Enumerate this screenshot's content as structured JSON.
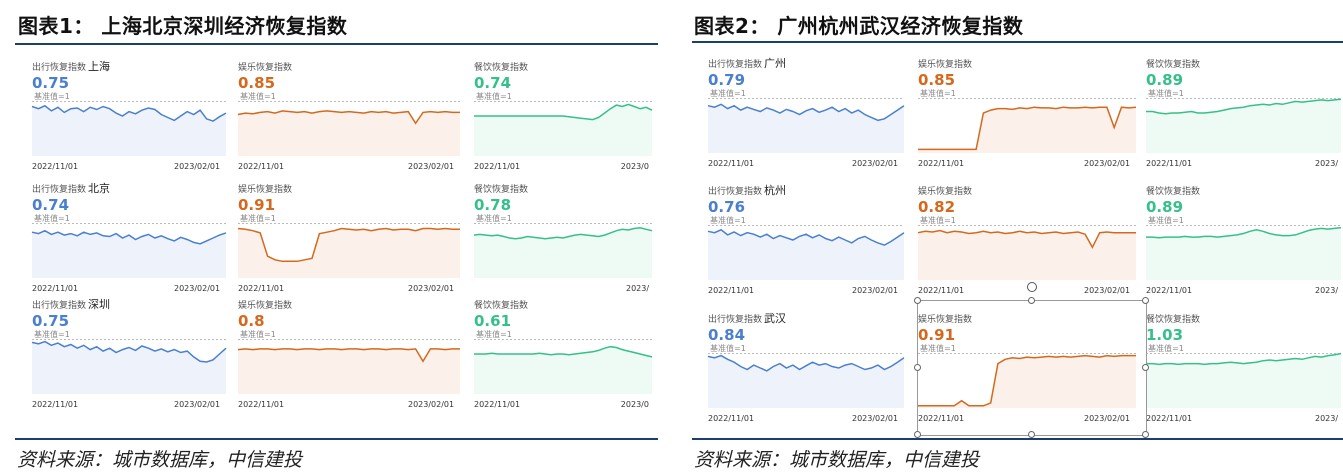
{
  "colors": {
    "blue": "#4a7fd0",
    "orange": "#d4691e",
    "green": "#35c08a",
    "rule": "#1d3f6e"
  },
  "figure1": {
    "title": "图表1：  上海北京深圳经济恢复指数",
    "source": "资料来源：城市数据库，中信建投",
    "base_label": "基准值=1",
    "cities": [
      "上海",
      "北京",
      "深圳"
    ],
    "panels": [
      {
        "label": "出行恢复指数",
        "city": "上海",
        "value": "0.75",
        "color": "blue",
        "date_start": "2022/11/01",
        "date_end": "2023/02/01"
      },
      {
        "label": "娱乐恢复指数",
        "city": "",
        "value": "0.85",
        "color": "orange",
        "date_start": "2022/11/01",
        "date_end": "2023/02/01"
      },
      {
        "label": "餐饮恢复指数",
        "city": "",
        "value": "0.74",
        "color": "green",
        "date_start": "2022/11/01",
        "date_end": "2023/0"
      },
      {
        "label": "出行恢复指数",
        "city": "北京",
        "value": "0.74",
        "color": "blue",
        "date_start": "2022/11/01",
        "date_end": "2023/02/01"
      },
      {
        "label": "娱乐恢复指数",
        "city": "",
        "value": "0.91",
        "color": "orange",
        "date_start": "2022/11/01",
        "date_end": "2023/02/01"
      },
      {
        "label": "餐饮恢复指数",
        "city": "",
        "value": "0.78",
        "color": "green",
        "date_start": "",
        "date_end": "2023/"
      },
      {
        "label": "出行恢复指数",
        "city": "深圳",
        "value": "0.75",
        "color": "blue",
        "date_start": "2022/11/01",
        "date_end": "2023/02/01"
      },
      {
        "label": "娱乐恢复指数",
        "city": "",
        "value": "0.8",
        "color": "orange",
        "date_start": "2022/11/01",
        "date_end": "2023/02/01"
      },
      {
        "label": "餐饮恢复指数",
        "city": "",
        "value": "0.61",
        "color": "green",
        "date_start": "2022/11/01",
        "date_end": "2023/0"
      }
    ]
  },
  "figure2": {
    "title": "图表2：  广州杭州武汉经济恢复指数",
    "source": "资料来源：城市数据库，中信建投",
    "base_label": "基准值=1",
    "cities": [
      "广州",
      "杭州",
      "武汉"
    ],
    "panels": [
      {
        "label": "出行恢复指数",
        "city": "广州",
        "value": "0.79",
        "color": "blue",
        "date_start": "2022/11/01",
        "date_end": "2023/02/01"
      },
      {
        "label": "娱乐恢复指数",
        "city": "",
        "value": "0.85",
        "color": "orange",
        "date_start": "2022/11/01",
        "date_end": "2023/02/01"
      },
      {
        "label": "餐饮恢复指数",
        "city": "",
        "value": "0.89",
        "color": "green",
        "date_start": "2022/11/01",
        "date_end": "2023/"
      },
      {
        "label": "出行恢复指数",
        "city": "杭州",
        "value": "0.76",
        "color": "blue",
        "date_start": "2022/11/01",
        "date_end": "2023/02/01"
      },
      {
        "label": "娱乐恢复指数",
        "city": "",
        "value": "0.82",
        "color": "orange",
        "date_start": "2022/11/01",
        "date_end": "2023/02/01"
      },
      {
        "label": "餐饮恢复指数",
        "city": "",
        "value": "0.89",
        "color": "green",
        "date_start": "2022/11/01",
        "date_end": "2023/"
      },
      {
        "label": "出行恢复指数",
        "city": "武汉",
        "value": "0.84",
        "color": "blue",
        "date_start": "2022/11/01",
        "date_end": "2023/02/01"
      },
      {
        "label": "娱乐恢复指数",
        "city": "",
        "value": "0.91",
        "color": "orange",
        "date_start": "2022/11/01",
        "date_end": "2023/02/01"
      },
      {
        "label": "餐饮恢复指数",
        "city": "",
        "value": "1.03",
        "color": "green",
        "date_start": "2022/11/01",
        "date_end": "2023/"
      }
    ]
  },
  "chart_data": [
    {
      "type": "line",
      "title": "出行恢复指数 上海",
      "xlabel": "",
      "ylabel": "",
      "x_ticks": [
        "2022/11/01",
        "2023/02/01"
      ],
      "baseline": 1,
      "latest": 0.75,
      "series": [
        {
          "values": [
            0.93,
            0.9,
            0.94,
            0.87,
            0.92,
            0.85,
            0.9,
            0.91,
            0.86,
            0.92,
            0.89,
            0.93,
            0.9,
            0.84,
            0.8,
            0.86,
            0.83,
            0.88,
            0.91,
            0.89,
            0.82,
            0.78,
            0.74,
            0.8,
            0.86,
            0.82,
            0.88,
            0.76,
            0.73,
            0.79,
            0.84
          ]
        }
      ]
    },
    {
      "type": "line",
      "title": "娱乐恢复指数",
      "xlabel": "",
      "ylabel": "",
      "x_ticks": [
        "2022/11/01",
        "2023/02/01"
      ],
      "baseline": 1,
      "latest": 0.85,
      "series": [
        {
          "values": [
            0.82,
            0.84,
            0.83,
            0.85,
            0.86,
            0.84,
            0.87,
            0.86,
            0.85,
            0.86,
            0.84,
            0.86,
            0.87,
            0.86,
            0.85,
            0.86,
            0.85,
            0.84,
            0.86,
            0.85,
            0.86,
            0.84,
            0.85,
            0.86,
            0.7,
            0.85,
            0.86,
            0.85,
            0.86,
            0.85,
            0.85
          ]
        }
      ]
    },
    {
      "type": "line",
      "title": "餐饮恢复指数",
      "xlabel": "",
      "ylabel": "",
      "x_ticks": [
        "2022/11/01",
        "2023/0"
      ],
      "baseline": 1,
      "latest": 0.74,
      "series": [
        {
          "values": [
            0.8,
            0.8,
            0.8,
            0.8,
            0.8,
            0.8,
            0.8,
            0.8,
            0.8,
            0.8,
            0.8,
            0.8,
            0.8,
            0.8,
            0.8,
            0.8,
            0.79,
            0.78,
            0.77,
            0.76,
            0.75,
            0.78,
            0.84,
            0.9,
            0.95,
            0.93,
            0.96,
            0.93,
            0.9,
            0.92,
            0.88
          ]
        }
      ]
    },
    {
      "type": "line",
      "title": "出行恢复指数 北京",
      "xlabel": "",
      "ylabel": "",
      "x_ticks": [
        "2022/11/01",
        "2023/02/01"
      ],
      "baseline": 1,
      "latest": 0.74,
      "series": [
        {
          "values": [
            0.88,
            0.86,
            0.9,
            0.85,
            0.88,
            0.84,
            0.86,
            0.83,
            0.88,
            0.85,
            0.87,
            0.83,
            0.82,
            0.86,
            0.8,
            0.84,
            0.78,
            0.82,
            0.85,
            0.8,
            0.83,
            0.79,
            0.76,
            0.81,
            0.78,
            0.74,
            0.72,
            0.76,
            0.8,
            0.84,
            0.87
          ]
        }
      ]
    },
    {
      "type": "line",
      "title": "娱乐恢复指数",
      "xlabel": "",
      "ylabel": "",
      "x_ticks": [
        "2022/11/01",
        "2023/02/01"
      ],
      "baseline": 1,
      "latest": 0.91,
      "series": [
        {
          "values": [
            0.93,
            0.92,
            0.9,
            0.87,
            0.55,
            0.5,
            0.48,
            0.48,
            0.48,
            0.5,
            0.52,
            0.86,
            0.88,
            0.9,
            0.93,
            0.92,
            0.91,
            0.92,
            0.9,
            0.92,
            0.93,
            0.91,
            0.92,
            0.92,
            0.9,
            0.93,
            0.93,
            0.92,
            0.93,
            0.92,
            0.92
          ]
        }
      ]
    },
    {
      "type": "line",
      "title": "餐饮恢复指数",
      "xlabel": "",
      "ylabel": "",
      "x_ticks": [
        "2023/"
      ],
      "baseline": 1,
      "latest": 0.78,
      "series": [
        {
          "values": [
            0.84,
            0.85,
            0.84,
            0.83,
            0.84,
            0.82,
            0.8,
            0.79,
            0.8,
            0.82,
            0.81,
            0.8,
            0.79,
            0.8,
            0.81,
            0.8,
            0.82,
            0.84,
            0.85,
            0.84,
            0.83,
            0.82,
            0.84,
            0.87,
            0.9,
            0.92,
            0.91,
            0.93,
            0.94,
            0.92,
            0.9
          ]
        }
      ]
    },
    {
      "type": "line",
      "title": "出行恢复指数 深圳",
      "xlabel": "",
      "ylabel": "",
      "x_ticks": [
        "2022/11/01",
        "2023/02/01"
      ],
      "baseline": 1,
      "latest": 0.75,
      "series": [
        {
          "values": [
            0.96,
            0.94,
            0.97,
            0.92,
            0.95,
            0.9,
            0.93,
            0.88,
            0.92,
            0.86,
            0.9,
            0.84,
            0.88,
            0.82,
            0.86,
            0.89,
            0.85,
            0.91,
            0.88,
            0.84,
            0.87,
            0.83,
            0.86,
            0.82,
            0.84,
            0.76,
            0.7,
            0.69,
            0.72,
            0.8,
            0.88
          ]
        }
      ]
    },
    {
      "type": "line",
      "title": "娱乐恢复指数",
      "xlabel": "",
      "ylabel": "",
      "x_ticks": [
        "2022/11/01",
        "2023/02/01"
      ],
      "baseline": 1,
      "latest": 0.8,
      "series": [
        {
          "values": [
            0.86,
            0.87,
            0.86,
            0.87,
            0.87,
            0.86,
            0.87,
            0.87,
            0.86,
            0.87,
            0.87,
            0.86,
            0.87,
            0.87,
            0.86,
            0.87,
            0.87,
            0.86,
            0.87,
            0.87,
            0.86,
            0.87,
            0.87,
            0.86,
            0.87,
            0.7,
            0.87,
            0.87,
            0.86,
            0.87,
            0.87
          ]
        }
      ]
    },
    {
      "type": "line",
      "title": "餐饮恢复指数",
      "xlabel": "",
      "ylabel": "",
      "x_ticks": [
        "2022/11/01",
        "2023/0"
      ],
      "baseline": 1,
      "latest": 0.61,
      "series": [
        {
          "values": [
            0.8,
            0.8,
            0.8,
            0.81,
            0.8,
            0.8,
            0.8,
            0.8,
            0.8,
            0.8,
            0.8,
            0.81,
            0.8,
            0.79,
            0.8,
            0.8,
            0.79,
            0.8,
            0.81,
            0.82,
            0.83,
            0.85,
            0.88,
            0.9,
            0.89,
            0.86,
            0.84,
            0.82,
            0.8,
            0.78,
            0.76
          ]
        }
      ]
    },
    {
      "type": "line",
      "title": "出行恢复指数 广州",
      "xlabel": "",
      "ylabel": "",
      "x_ticks": [
        "2022/11/01",
        "2023/02/01"
      ],
      "baseline": 1,
      "latest": 0.79,
      "series": [
        {
          "values": [
            0.9,
            0.88,
            0.92,
            0.86,
            0.9,
            0.84,
            0.88,
            0.85,
            0.82,
            0.87,
            0.84,
            0.8,
            0.85,
            0.82,
            0.78,
            0.83,
            0.86,
            0.81,
            0.84,
            0.88,
            0.82,
            0.86,
            0.8,
            0.84,
            0.78,
            0.74,
            0.7,
            0.72,
            0.78,
            0.84,
            0.9
          ]
        }
      ]
    },
    {
      "type": "line",
      "title": "娱乐恢复指数",
      "xlabel": "",
      "ylabel": "",
      "x_ticks": [
        "2022/11/01",
        "2023/02/01"
      ],
      "baseline": 1,
      "latest": 0.85,
      "series": [
        {
          "values": [
            0.3,
            0.3,
            0.3,
            0.3,
            0.3,
            0.3,
            0.3,
            0.3,
            0.3,
            0.8,
            0.84,
            0.86,
            0.86,
            0.85,
            0.87,
            0.86,
            0.88,
            0.87,
            0.87,
            0.86,
            0.88,
            0.87,
            0.87,
            0.88,
            0.87,
            0.88,
            0.88,
            0.6,
            0.88,
            0.87,
            0.88
          ]
        }
      ]
    },
    {
      "type": "line",
      "title": "餐饮恢复指数",
      "xlabel": "",
      "ylabel": "",
      "x_ticks": [
        "2022/11/01",
        "2023/"
      ],
      "baseline": 1,
      "latest": 0.89,
      "series": [
        {
          "values": [
            0.82,
            0.82,
            0.8,
            0.79,
            0.8,
            0.8,
            0.81,
            0.82,
            0.8,
            0.8,
            0.81,
            0.82,
            0.84,
            0.86,
            0.87,
            0.88,
            0.9,
            0.91,
            0.92,
            0.91,
            0.93,
            0.92,
            0.94,
            0.96,
            0.95,
            0.96,
            0.97,
            0.98,
            0.97,
            0.98,
            0.99
          ]
        }
      ]
    },
    {
      "type": "line",
      "title": "出行恢复指数 杭州",
      "xlabel": "",
      "ylabel": "",
      "x_ticks": [
        "2022/11/01",
        "2023/02/01"
      ],
      "baseline": 1,
      "latest": 0.76,
      "series": [
        {
          "values": [
            0.92,
            0.9,
            0.94,
            0.87,
            0.91,
            0.86,
            0.9,
            0.88,
            0.84,
            0.88,
            0.82,
            0.86,
            0.83,
            0.8,
            0.85,
            0.88,
            0.83,
            0.87,
            0.82,
            0.79,
            0.84,
            0.8,
            0.76,
            0.82,
            0.85,
            0.8,
            0.76,
            0.73,
            0.78,
            0.84,
            0.9
          ]
        }
      ]
    },
    {
      "type": "line",
      "title": "娱乐恢复指数",
      "xlabel": "",
      "ylabel": "",
      "x_ticks": [
        "2022/11/01",
        "2023/02/01"
      ],
      "baseline": 1,
      "latest": 0.82,
      "series": [
        {
          "values": [
            0.9,
            0.92,
            0.91,
            0.93,
            0.9,
            0.92,
            0.91,
            0.89,
            0.9,
            0.92,
            0.9,
            0.91,
            0.89,
            0.9,
            0.92,
            0.9,
            0.91,
            0.89,
            0.9,
            0.91,
            0.89,
            0.9,
            0.91,
            0.88,
            0.7,
            0.9,
            0.91,
            0.9,
            0.9,
            0.9,
            0.9
          ]
        }
      ]
    },
    {
      "type": "line",
      "title": "餐饮恢复指数",
      "xlabel": "",
      "ylabel": "",
      "x_ticks": [
        "2022/11/01",
        "2023/"
      ],
      "baseline": 1,
      "latest": 0.89,
      "series": [
        {
          "values": [
            0.84,
            0.84,
            0.83,
            0.84,
            0.84,
            0.84,
            0.85,
            0.84,
            0.84,
            0.85,
            0.85,
            0.84,
            0.85,
            0.86,
            0.87,
            0.89,
            0.92,
            0.94,
            0.92,
            0.89,
            0.87,
            0.86,
            0.86,
            0.87,
            0.9,
            0.93,
            0.95,
            0.96,
            0.95,
            0.96,
            0.97
          ]
        }
      ]
    },
    {
      "type": "line",
      "title": "出行恢复指数 武汉",
      "xlabel": "",
      "ylabel": "",
      "x_ticks": [
        "2022/11/01",
        "2023/02/01"
      ],
      "baseline": 1,
      "latest": 0.84,
      "series": [
        {
          "values": [
            0.96,
            0.94,
            0.97,
            0.92,
            0.88,
            0.82,
            0.78,
            0.84,
            0.8,
            0.76,
            0.82,
            0.86,
            0.8,
            0.84,
            0.78,
            0.83,
            0.88,
            0.84,
            0.86,
            0.82,
            0.8,
            0.84,
            0.86,
            0.82,
            0.78,
            0.8,
            0.84,
            0.78,
            0.82,
            0.88,
            0.94
          ]
        }
      ]
    },
    {
      "type": "line",
      "title": "娱乐恢复指数",
      "xlabel": "",
      "ylabel": "",
      "x_ticks": [
        "2022/11/01",
        "2023/02/01"
      ],
      "baseline": 1,
      "latest": 0.91,
      "series": [
        {
          "values": [
            0.28,
            0.28,
            0.28,
            0.28,
            0.28,
            0.28,
            0.35,
            0.28,
            0.28,
            0.28,
            0.32,
            0.86,
            0.92,
            0.94,
            0.93,
            0.95,
            0.94,
            0.95,
            0.96,
            0.95,
            0.96,
            0.95,
            0.96,
            0.97,
            0.96,
            0.95,
            0.97,
            0.96,
            0.97,
            0.97,
            0.97
          ]
        }
      ]
    },
    {
      "type": "line",
      "title": "餐饮恢复指数",
      "xlabel": "",
      "ylabel": "",
      "x_ticks": [
        "2022/11/01",
        "2023/"
      ],
      "baseline": 1,
      "latest": 1.03,
      "series": [
        {
          "values": [
            0.86,
            0.86,
            0.85,
            0.86,
            0.86,
            0.85,
            0.86,
            0.86,
            0.86,
            0.85,
            0.86,
            0.86,
            0.87,
            0.88,
            0.87,
            0.86,
            0.87,
            0.88,
            0.9,
            0.91,
            0.9,
            0.91,
            0.92,
            0.93,
            0.92,
            0.94,
            0.96,
            0.95,
            0.97,
            0.98,
            1.0
          ]
        }
      ]
    }
  ]
}
